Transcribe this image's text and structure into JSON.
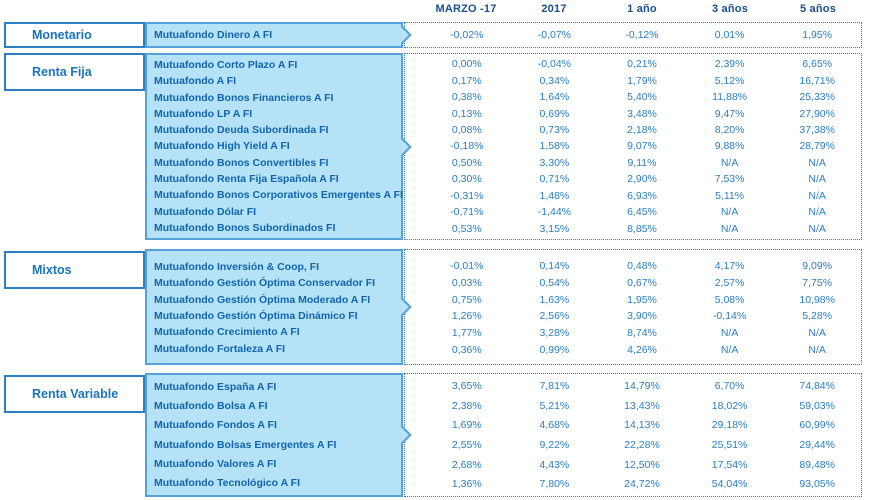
{
  "columns": [
    "MARZO -17",
    "2017",
    "1 año",
    "3 años",
    "5 años"
  ],
  "icons": {
    "section_pointer": "chevron-right"
  },
  "colors": {
    "light_blue_fill": "#B5E2F6",
    "fund_box_border": "#56A2D8",
    "category_box_border": "#2B7FC2",
    "fund_name_text": "#1065AD",
    "value_text": "#2B7FC2",
    "header_text": "#1A4F8F"
  },
  "sections": [
    {
      "category": "Monetario",
      "funds": [
        {
          "name": "Mutuafondo Dinero A FI",
          "values": [
            "-0,02%",
            "-0,07%",
            "-0,12%",
            "0,01%",
            "1,95%"
          ]
        }
      ]
    },
    {
      "category": "Renta Fija",
      "funds": [
        {
          "name": "Mutuafondo Corto Plazo A FI",
          "values": [
            "0,00%",
            "-0,04%",
            "0,21%",
            "2,39%",
            "6,65%"
          ]
        },
        {
          "name": "Mutuafondo A FI",
          "values": [
            "0,17%",
            "0,34%",
            "1,79%",
            "5,12%",
            "16,71%"
          ]
        },
        {
          "name": "Mutuafondo Bonos Financieros A FI",
          "values": [
            "0,38%",
            "1,64%",
            "5,40%",
            "11,88%",
            "25,33%"
          ]
        },
        {
          "name": "Mutuafondo LP A FI",
          "values": [
            "0,13%",
            "0,69%",
            "3,48%",
            "9,47%",
            "27,90%"
          ]
        },
        {
          "name": "Mutuafondo Deuda Subordinada FI",
          "values": [
            "0,08%",
            "0,73%",
            "2,18%",
            "8,20%",
            "37,38%"
          ]
        },
        {
          "name": "Mutuafondo High Yield A FI",
          "values": [
            "-0,18%",
            "1,58%",
            "9,07%",
            "9,88%",
            "28,79%"
          ]
        },
        {
          "name": "Mutuafondo Bonos Convertibles FI",
          "values": [
            "0,50%",
            "3,30%",
            "9,11%",
            "N/A",
            "N/A"
          ]
        },
        {
          "name": "Mutuafondo Renta Fija Española A FI",
          "values": [
            "0,30%",
            "0,71%",
            "2,90%",
            "7,53%",
            "N/A"
          ]
        },
        {
          "name": "Mutuafondo Bonos Corporativos Emergentes A FI",
          "values": [
            "-0,31%",
            "1,48%",
            "6,93%",
            "5,11%",
            "N/A"
          ]
        },
        {
          "name": "Mutuafondo Dólar FI",
          "values": [
            "-0,71%",
            "-1,44%",
            "6,45%",
            "N/A",
            "N/A"
          ]
        },
        {
          "name": "Mutuafondo Bonos Subordinados FI",
          "values": [
            "0,53%",
            "3,15%",
            "8,85%",
            "N/A",
            "N/A"
          ]
        }
      ]
    },
    {
      "category": "Mixtos",
      "funds": [
        {
          "name": "Mutuafondo Inversión & Coop, FI",
          "values": [
            "-0,01%",
            "0,14%",
            "0,48%",
            "4,17%",
            "9,09%"
          ]
        },
        {
          "name": "Mutuafondo Gestión Óptima Conservador FI",
          "values": [
            "0,03%",
            "0,54%",
            "0,67%",
            "2,57%",
            "7,75%"
          ]
        },
        {
          "name": "Mutuafondo Gestión Óptima Moderado A FI",
          "values": [
            "0,75%",
            "1,63%",
            "1,95%",
            "5,08%",
            "10,98%"
          ]
        },
        {
          "name": "Mutuafondo Gestión Óptima Dinámico FI",
          "values": [
            "1,26%",
            "2,56%",
            "3,90%",
            "-0,14%",
            "5,28%"
          ]
        },
        {
          "name": "Mutuafondo Crecimiento A FI",
          "values": [
            "1,77%",
            "3,28%",
            "8,74%",
            "N/A",
            "N/A"
          ]
        },
        {
          "name": "Mutuafondo Fortaleza A FI",
          "values": [
            "0,36%",
            "0,99%",
            "4,26%",
            "N/A",
            "N/A"
          ]
        }
      ]
    },
    {
      "category": "Renta Variable",
      "funds": [
        {
          "name": "Mutuafondo España A FI",
          "values": [
            "3,65%",
            "7,81%",
            "14,79%",
            "6,70%",
            "74,84%"
          ]
        },
        {
          "name": "Mutuafondo Bolsa A FI",
          "values": [
            "2,38%",
            "5,21%",
            "13,43%",
            "18,02%",
            "59,03%"
          ]
        },
        {
          "name": "Mutuafondo Fondos A FI",
          "values": [
            "1,69%",
            "4,68%",
            "14,13%",
            "29,18%",
            "60,99%"
          ]
        },
        {
          "name": "Mutuafondo Bolsas Emergentes A FI",
          "values": [
            "2,55%",
            "9,22%",
            "22,28%",
            "25,51%",
            "29,44%"
          ]
        },
        {
          "name": "Mutuafondo Valores A FI",
          "values": [
            "2,68%",
            "4,43%",
            "12,50%",
            "17,54%",
            "89,48%"
          ]
        },
        {
          "name": "Mutuafondo Tecnológico A FI",
          "values": [
            "1,36%",
            "7,80%",
            "24,72%",
            "54,04%",
            "93,05%"
          ]
        }
      ]
    }
  ]
}
